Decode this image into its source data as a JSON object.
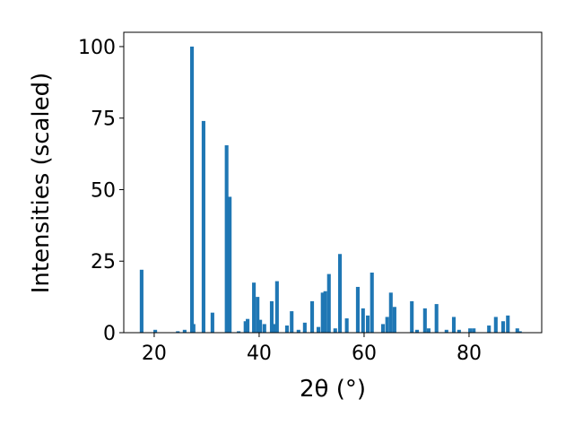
{
  "chart_data": {
    "type": "bar",
    "xlabel": "2θ (°)",
    "ylabel": "Intensities (scaled)",
    "color": "#1f77b4",
    "x": [
      17.6,
      20.2,
      24.5,
      25.8,
      27.2,
      27.5,
      29.4,
      31.1,
      33.8,
      34.4,
      36.1,
      37.4,
      37.8,
      39.0,
      39.7,
      40.2,
      41.0,
      42.4,
      42.9,
      43.4,
      45.3,
      46.2,
      47.5,
      48.7,
      50.1,
      51.3,
      52.1,
      52.6,
      53.3,
      54.5,
      55.4,
      56.7,
      58.8,
      59.8,
      60.7,
      61.5,
      63.6,
      64.4,
      65.1,
      65.8,
      69.1,
      70.1,
      71.6,
      72.3,
      73.8,
      75.7,
      77.1,
      78.1,
      80.2,
      80.9,
      83.8,
      85.1,
      86.5,
      87.4,
      89.2,
      89.7
    ],
    "values": [
      22,
      1,
      0.5,
      1,
      100,
      3,
      74,
      7,
      65.5,
      47.5,
      0.5,
      4,
      4.8,
      17.5,
      12.5,
      4.5,
      3,
      11,
      3,
      18,
      2.5,
      7.5,
      1,
      3.5,
      11,
      2,
      14,
      14.5,
      20.5,
      1.5,
      27.5,
      5,
      16,
      8.5,
      6,
      21,
      3,
      5.5,
      14,
      9,
      11,
      1,
      8.5,
      1.5,
      10,
      1,
      5.5,
      1,
      1.5,
      1.5,
      2.5,
      5.5,
      4,
      6,
      1.5,
      0.5
    ],
    "xlim": [
      14.2,
      93.85
    ],
    "ylim": [
      0,
      105
    ],
    "xticks": [
      20,
      40,
      60,
      80
    ],
    "yticks": [
      0,
      25,
      50,
      75,
      100
    ]
  }
}
